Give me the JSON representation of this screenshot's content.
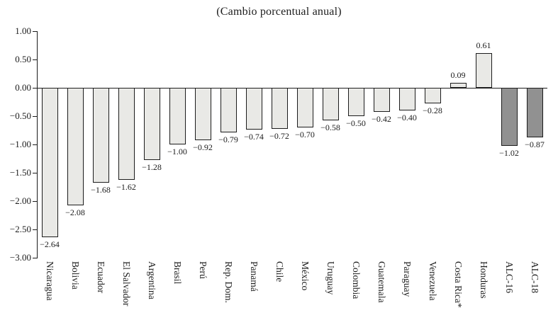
{
  "title": "(Cambio porcentual anual)",
  "chart_data": {
    "type": "bar",
    "title": "(Cambio porcentual anual)",
    "xlabel": "",
    "ylabel": "",
    "grid": false,
    "legend": false,
    "ylim": [
      -3.0,
      1.0
    ],
    "ytick_labels": [
      "1.00",
      "0.50",
      "0.00",
      "−0.50",
      "−1.00",
      "−1.50",
      "−2.00",
      "−2.50",
      "−3.00"
    ],
    "ytick_values": [
      1.0,
      0.5,
      0.0,
      -0.5,
      -1.0,
      -1.5,
      -2.0,
      -2.5,
      -3.0
    ],
    "categories": [
      "Nicaragua",
      "Bolivia",
      "Ecuador",
      "El Salvador",
      "Argentina",
      "Brasil",
      "Perú",
      "Rep. Dom.",
      "Panamá",
      "Chile",
      "México",
      "Uruguay",
      "Colombia",
      "Guatemala",
      "Paraguay",
      "Venezuela",
      "Costa Rica*",
      "Honduras",
      "ALC-16",
      "ALC-18"
    ],
    "values": [
      -2.64,
      -2.08,
      -1.68,
      -1.62,
      -1.28,
      -1.0,
      -0.92,
      -0.79,
      -0.74,
      -0.72,
      -0.7,
      -0.58,
      -0.5,
      -0.42,
      -0.4,
      -0.28,
      0.09,
      0.61,
      -1.02,
      -0.87
    ],
    "value_labels": [
      "−2.64",
      "−2.08",
      "−1.68",
      "−1.62",
      "−1.28",
      "−1.00",
      "−0.92",
      "−0.79",
      "−0.74",
      "−0.72",
      "−0.70",
      "−0.58",
      "−0.50",
      "−0.42",
      "−0.40",
      "−0.28",
      "0.09",
      "0.61",
      "−1.02",
      "−0.87"
    ],
    "highlighted_categories": [
      "ALC-16",
      "ALC-18"
    ],
    "colors": {
      "bar_fill": "#e9e9e6",
      "bar_highlight_fill": "#919191",
      "bar_border": "#1c1c1c",
      "axis": "#1c1c1c",
      "background": "#ffffff"
    }
  }
}
